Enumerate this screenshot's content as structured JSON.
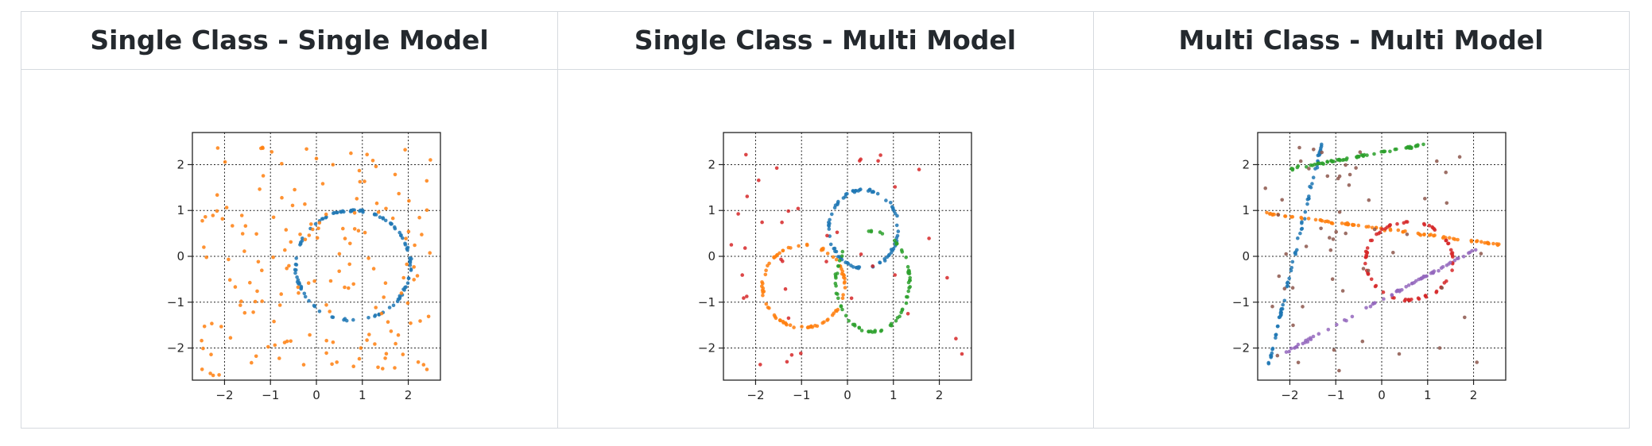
{
  "panels": [
    {
      "title": "Single Class - Single Model"
    },
    {
      "title": "Single Class - Multi Model"
    },
    {
      "title": "Multi Class - Multi Model"
    }
  ],
  "colors": {
    "blue": "#1f77b4",
    "orange": "#ff7f0e",
    "green": "#2ca02c",
    "red": "#d62728",
    "purple": "#9467bd",
    "brown": "#8c564b"
  },
  "chart_data": [
    {
      "type": "scatter",
      "title": "Single Class - Single Model",
      "xlim": [
        -2.7,
        2.7
      ],
      "ylim": [
        -2.7,
        2.7
      ],
      "xticks": [
        -2,
        -1,
        0,
        1,
        2
      ],
      "yticks": [
        -2,
        -1,
        0,
        1,
        2
      ],
      "tick_labels": [
        "−2",
        "−1",
        "0",
        "1",
        "2"
      ],
      "grid": true,
      "series": [
        {
          "kind": "ellipse",
          "color": "#1f77b4",
          "cx": 0.8,
          "cy": -0.2,
          "rx": 1.25,
          "ry": 1.2,
          "n": 110,
          "t0": 0.0,
          "t1": 6.28,
          "noise": 0.03
        },
        {
          "kind": "noise",
          "color": "#ff7f0e",
          "n": 170,
          "seed": 11,
          "xr": [
            -2.6,
            2.5
          ],
          "yr": [
            -2.6,
            2.4
          ]
        }
      ]
    },
    {
      "type": "scatter",
      "title": "Single Class - Multi Model",
      "xlim": [
        -2.7,
        2.7
      ],
      "ylim": [
        -2.7,
        2.7
      ],
      "xticks": [
        -2,
        -1,
        0,
        1,
        2
      ],
      "yticks": [
        -2,
        -1,
        0,
        1,
        2
      ],
      "tick_labels": [
        "−2",
        "−1",
        "0",
        "1",
        "2"
      ],
      "grid": true,
      "series": [
        {
          "kind": "ellipse",
          "color": "#1f77b4",
          "cx": 0.35,
          "cy": 0.6,
          "rx": 0.75,
          "ry": 0.85,
          "n": 80,
          "t0": 0.0,
          "t1": 6.28,
          "noise": 0.03
        },
        {
          "kind": "ellipse",
          "color": "#ff7f0e",
          "cx": -0.95,
          "cy": -0.65,
          "rx": 0.9,
          "ry": 0.9,
          "n": 80,
          "t0": 0.0,
          "t1": 6.28,
          "noise": 0.03
        },
        {
          "kind": "ellipse",
          "color": "#2ca02c",
          "cx": 0.55,
          "cy": -0.55,
          "rx": 0.8,
          "ry": 1.1,
          "n": 70,
          "t0": 0.0,
          "t1": 6.28,
          "noise": 0.03
        },
        {
          "kind": "noise",
          "color": "#d62728",
          "n": 40,
          "seed": 23,
          "xr": [
            -2.6,
            2.5
          ],
          "yr": [
            -2.5,
            2.4
          ]
        }
      ]
    },
    {
      "type": "scatter",
      "title": "Multi Class - Multi Model",
      "xlim": [
        -2.7,
        2.7
      ],
      "ylim": [
        -2.7,
        2.7
      ],
      "xticks": [
        -2,
        -1,
        0,
        1,
        2
      ],
      "yticks": [
        -2,
        -1,
        0,
        1,
        2
      ],
      "tick_labels": [
        "−2",
        "−1",
        "0",
        "1",
        "2"
      ],
      "grid": true,
      "series": [
        {
          "kind": "line",
          "color": "#1f77b4",
          "x0": -2.5,
          "y0": -2.5,
          "x1": -1.3,
          "y1": 2.5,
          "n": 70,
          "noise": 0.03
        },
        {
          "kind": "line",
          "color": "#2ca02c",
          "x0": -2.0,
          "y0": 1.9,
          "x1": 1.0,
          "y1": 2.45,
          "n": 60,
          "noise": 0.03
        },
        {
          "kind": "line",
          "color": "#ff7f0e",
          "x0": -2.6,
          "y0": 0.95,
          "x1": 2.6,
          "y1": 0.25,
          "n": 80,
          "noise": 0.03
        },
        {
          "kind": "ellipse",
          "color": "#d62728",
          "cx": 0.6,
          "cy": -0.1,
          "rx": 0.95,
          "ry": 0.85,
          "n": 70,
          "t0": 0.0,
          "t1": 6.28,
          "noise": 0.03
        },
        {
          "kind": "line",
          "color": "#9467bd",
          "x0": -2.1,
          "y0": -2.1,
          "x1": 2.5,
          "y1": 0.4,
          "n": 70,
          "noise": 0.03
        },
        {
          "kind": "noise",
          "color": "#8c564b",
          "n": 55,
          "seed": 37,
          "xr": [
            -2.6,
            2.5
          ],
          "yr": [
            -2.5,
            2.4
          ]
        }
      ]
    }
  ]
}
